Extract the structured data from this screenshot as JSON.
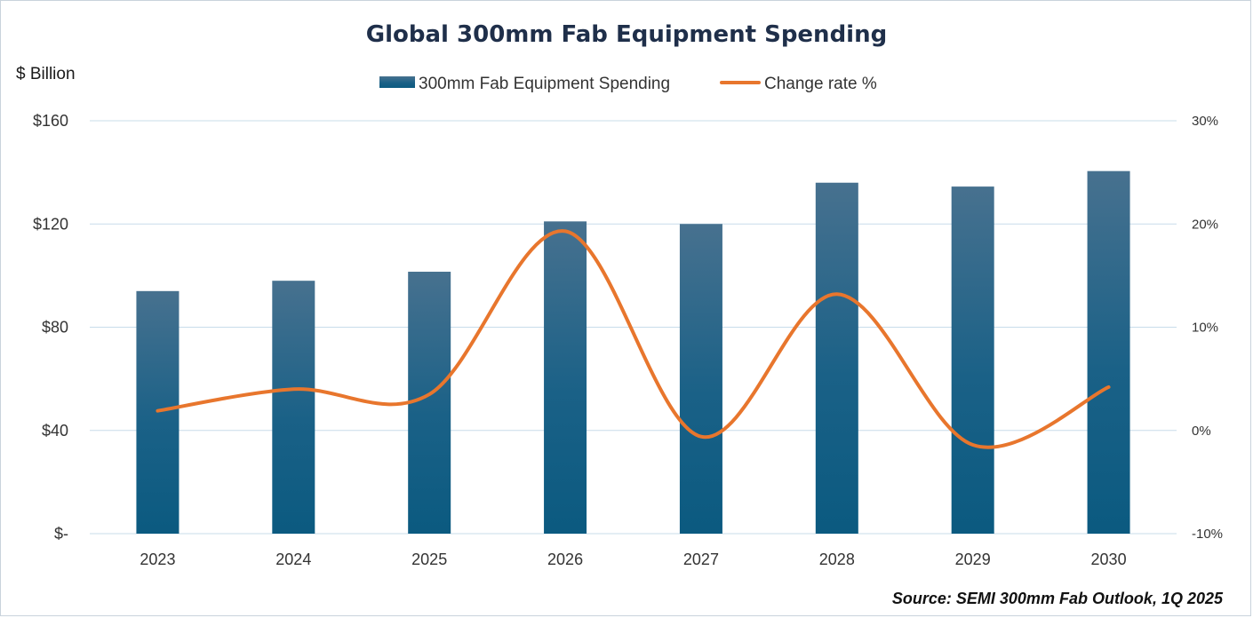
{
  "chart_data": {
    "type": "bar",
    "title": "Global 300mm Fab Equipment Spending",
    "ylabel": "$ Billion",
    "categories": [
      "2023",
      "2024",
      "2025",
      "2026",
      "2027",
      "2028",
      "2029",
      "2030"
    ],
    "series": [
      {
        "name": "300mm Fab Equipment Spending",
        "type": "bar",
        "axis": "left",
        "color": "#0b5a80",
        "values": [
          94,
          98,
          101.5,
          121,
          120,
          136,
          134.5,
          140.5
        ]
      },
      {
        "name": "Change rate %",
        "type": "line",
        "axis": "right",
        "color": "#e8762d",
        "values": [
          1.9,
          4.0,
          3.5,
          19.3,
          -0.6,
          13.2,
          -1.4,
          4.2
        ]
      }
    ],
    "ylim": [
      0,
      160
    ],
    "yticks": [
      0,
      40,
      80,
      120,
      160
    ],
    "ytick_labels": [
      "$-",
      "$40",
      "$80",
      "$120",
      "$160"
    ],
    "y2lim": [
      -10,
      30
    ],
    "y2ticks": [
      -10,
      0,
      10,
      20,
      30
    ],
    "y2tick_labels": [
      "-10%",
      "0%",
      "10%",
      "20%",
      "30%"
    ],
    "grid": true,
    "legend": "top-center",
    "source": "Source: SEMI 300mm Fab Outlook, 1Q 2025"
  }
}
